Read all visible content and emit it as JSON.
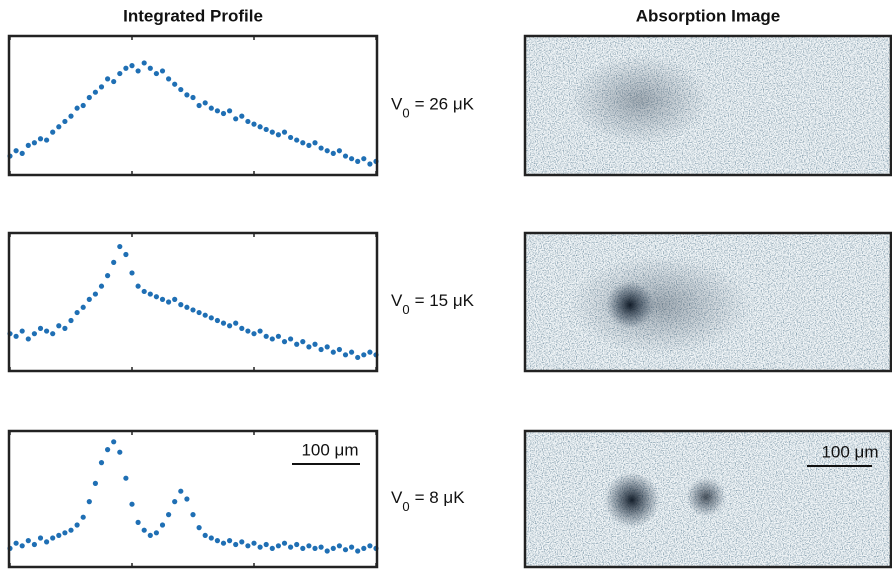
{
  "header": {
    "left_title": "Integrated Profile",
    "right_title": "Absorption Image"
  },
  "chart_data": [
    {
      "type": "scatter",
      "label": [
        "V",
        "0",
        "= 26 μK"
      ],
      "color": "#1f6fb4",
      "xlim": [
        0,
        60
      ],
      "ylim": [
        0,
        1
      ],
      "xticks": [
        0,
        20,
        40,
        60
      ],
      "x": [
        0,
        1,
        2,
        3,
        4,
        5,
        6,
        7,
        8,
        9,
        10,
        11,
        12,
        13,
        14,
        15,
        16,
        17,
        18,
        19,
        20,
        21,
        22,
        23,
        24,
        25,
        26,
        27,
        28,
        29,
        30,
        31,
        32,
        33,
        34,
        35,
        36,
        37,
        38,
        39,
        40,
        41,
        42,
        43,
        44,
        45,
        46,
        47,
        48,
        49,
        50,
        51,
        52,
        53,
        54,
        55,
        56,
        57,
        58,
        59,
        60
      ],
      "values": [
        0.12,
        0.16,
        0.14,
        0.2,
        0.22,
        0.25,
        0.24,
        0.3,
        0.34,
        0.38,
        0.42,
        0.48,
        0.5,
        0.56,
        0.6,
        0.64,
        0.7,
        0.68,
        0.74,
        0.78,
        0.8,
        0.76,
        0.82,
        0.78,
        0.74,
        0.76,
        0.7,
        0.66,
        0.62,
        0.58,
        0.56,
        0.5,
        0.52,
        0.48,
        0.46,
        0.44,
        0.46,
        0.4,
        0.42,
        0.38,
        0.36,
        0.34,
        0.32,
        0.3,
        0.28,
        0.3,
        0.26,
        0.24,
        0.22,
        0.2,
        0.22,
        0.18,
        0.16,
        0.14,
        0.16,
        0.12,
        0.1,
        0.08,
        0.1,
        0.06,
        0.08
      ]
    },
    {
      "type": "scatter",
      "label": [
        "V",
        "0",
        "= 15 μK"
      ],
      "color": "#1f6fb4",
      "xlim": [
        0,
        60
      ],
      "ylim": [
        0,
        1
      ],
      "xticks": [
        0,
        20,
        40,
        60
      ],
      "x": [
        0,
        1,
        2,
        3,
        4,
        5,
        6,
        7,
        8,
        9,
        10,
        11,
        12,
        13,
        14,
        15,
        16,
        17,
        18,
        19,
        20,
        21,
        22,
        23,
        24,
        25,
        26,
        27,
        28,
        29,
        30,
        31,
        32,
        33,
        34,
        35,
        36,
        37,
        38,
        39,
        40,
        41,
        42,
        43,
        44,
        45,
        46,
        47,
        48,
        49,
        50,
        51,
        52,
        53,
        54,
        55,
        56,
        57,
        58,
        59,
        60
      ],
      "values": [
        0.26,
        0.24,
        0.28,
        0.22,
        0.26,
        0.3,
        0.28,
        0.26,
        0.32,
        0.3,
        0.36,
        0.42,
        0.46,
        0.52,
        0.56,
        0.62,
        0.7,
        0.8,
        0.92,
        0.86,
        0.72,
        0.62,
        0.58,
        0.56,
        0.54,
        0.52,
        0.5,
        0.52,
        0.48,
        0.46,
        0.44,
        0.42,
        0.4,
        0.38,
        0.36,
        0.34,
        0.32,
        0.34,
        0.3,
        0.28,
        0.26,
        0.28,
        0.24,
        0.22,
        0.24,
        0.2,
        0.22,
        0.18,
        0.2,
        0.16,
        0.18,
        0.14,
        0.16,
        0.12,
        0.14,
        0.1,
        0.12,
        0.08,
        0.1,
        0.12,
        0.1
      ]
    },
    {
      "type": "scatter",
      "label": [
        "V",
        "0",
        "= 8 μK"
      ],
      "color": "#1f6fb4",
      "xlim": [
        0,
        60
      ],
      "ylim": [
        0,
        1
      ],
      "xticks": [
        0,
        20,
        40,
        60
      ],
      "scale_bar": "100 μm",
      "image_scale_bar": "100 μm",
      "x": [
        0,
        1,
        2,
        3,
        4,
        5,
        6,
        7,
        8,
        9,
        10,
        11,
        12,
        13,
        14,
        15,
        16,
        17,
        18,
        19,
        20,
        21,
        22,
        23,
        24,
        25,
        26,
        27,
        28,
        29,
        30,
        31,
        32,
        33,
        34,
        35,
        36,
        37,
        38,
        39,
        40,
        41,
        42,
        43,
        44,
        45,
        46,
        47,
        48,
        49,
        50,
        51,
        52,
        53,
        54,
        55,
        56,
        57,
        58,
        59,
        60
      ],
      "values": [
        0.12,
        0.16,
        0.14,
        0.18,
        0.15,
        0.2,
        0.17,
        0.2,
        0.22,
        0.24,
        0.26,
        0.3,
        0.36,
        0.48,
        0.62,
        0.78,
        0.88,
        0.94,
        0.86,
        0.66,
        0.46,
        0.32,
        0.26,
        0.22,
        0.24,
        0.3,
        0.38,
        0.48,
        0.56,
        0.5,
        0.38,
        0.28,
        0.22,
        0.2,
        0.18,
        0.16,
        0.18,
        0.15,
        0.17,
        0.14,
        0.16,
        0.13,
        0.15,
        0.12,
        0.14,
        0.16,
        0.13,
        0.15,
        0.12,
        0.14,
        0.12,
        0.13,
        0.1,
        0.12,
        0.14,
        0.11,
        0.13,
        0.1,
        0.12,
        0.14,
        0.12
      ]
    }
  ]
}
